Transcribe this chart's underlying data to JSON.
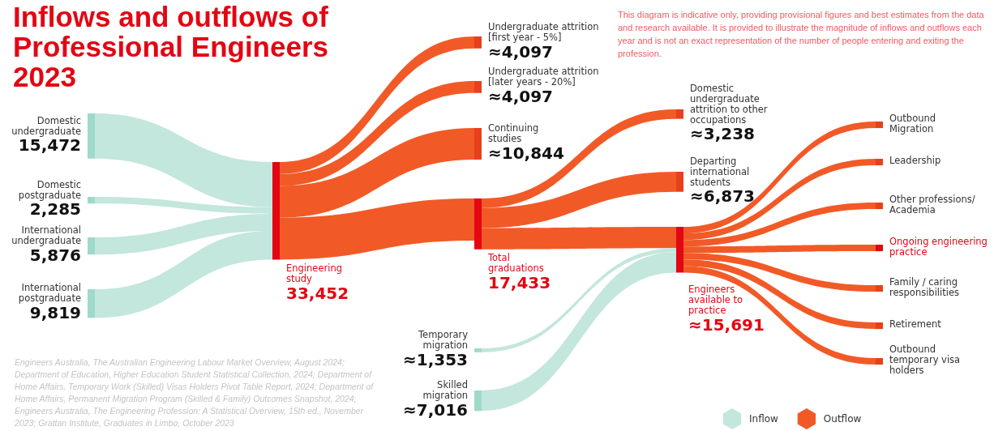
{
  "chart_data": {
    "type": "other",
    "title": "Inflows and outflows of Professional Engineers 2023",
    "categories": [
      "Domestic undergraduate",
      "Domestic postgraduate",
      "International undergraduate",
      "International postgraduate",
      "Engineering study",
      "Undergraduate attrition [first year - 5%]",
      "Undergraduate attrition [later years - 20%]",
      "Continuing studies",
      "Total graduations",
      "Temporary migration",
      "Skilled migration",
      "Domestic undergraduate attrition to other occupations",
      "Departing international students",
      "Engineers available to practice",
      "Outbound Migration",
      "Leadership",
      "Other professions/ Academia",
      "Ongoing engineering practice",
      "Family / caring responsibilities",
      "Retirement",
      "Outbound temporary visa holders"
    ],
    "values": [
      null,
      null,
      null,
      null,
      33452,
      null,
      null,
      null,
      17433,
      null,
      null,
      null,
      null,
      15691,
      null,
      null,
      null,
      null,
      null,
      null,
      null
    ],
    "value_labels": [
      null,
      null,
      null,
      null,
      "33,452",
      null,
      null,
      null,
      "17,433",
      null,
      null,
      null,
      null,
      "≈15,691",
      null,
      null,
      null,
      null,
      null,
      null,
      null
    ],
    "colors": [
      "#9fd9c9",
      "#9fd9c9",
      "#9fd9c9",
      "#9fd9c9",
      "#e30613",
      "#e8401c",
      "#e8401c",
      "#e8401c",
      "#e30613",
      "#9fd9c9",
      "#9fd9c9",
      "#e8401c",
      "#e8401c",
      "#e30613",
      "#e8401c",
      "#e8401c",
      "#e8401c",
      "#e30613",
      "#e8401c",
      "#e8401c",
      "#e8401c"
    ],
    "series": [
      {
        "name": "Inflow",
        "color": "#c3e6dd",
        "values": [
          15472,
          2285,
          5876,
          9819,
          null,
          null,
          null,
          null,
          null,
          1353,
          7016,
          null,
          null,
          null,
          null,
          null,
          null,
          null,
          null,
          null,
          null
        ],
        "value_labels": [
          "15,472",
          "2,285",
          "5,876",
          "9,819",
          null,
          null,
          null,
          null,
          null,
          "≈1,353",
          "≈7,016",
          null,
          null,
          null,
          null,
          null,
          null,
          null,
          null,
          null,
          null
        ]
      },
      {
        "name": "Outflow",
        "color": "#f15a27",
        "values": [
          null,
          null,
          null,
          null,
          null,
          4097,
          4097,
          10844,
          null,
          null,
          null,
          3238,
          6873,
          null,
          null,
          null,
          null,
          null,
          null,
          null,
          null
        ],
        "value_labels": [
          null,
          null,
          null,
          null,
          null,
          "≈4,097",
          "≈4,097",
          "≈10,844",
          null,
          null,
          null,
          "≈3,238",
          "≈6,873",
          null,
          null,
          null,
          null,
          null,
          null,
          null,
          null
        ]
      }
    ],
    "legend": "bottom right",
    "annotations": [
      "This diagram is indicative only, providing provisional figures and best estimates from the data and research available. It is provided to illustrate the magnitude of inflows and outflows each year and is not an exact representation of the number of people entering and exiting the profession.",
      "Engineers Australia, The Australian Engineering Labour Market Overview, August 2024; Department of Education, Higher Education Student Statistical Collection, 2024; Department of Home Affairs, Temporary Work (Skilled) Visas Holders Pivot Table Report, 2024; Department of Home Affairs, Permanent Migration Program (Skilled & Family) Outcomes Snapshot, 2024; Engineers Australia, The Engineering Profession: A Statistical Overview, 15th ed., November 2023; Grattan Institute, Graduates in Limbo, October 2023"
    ]
  }
}
